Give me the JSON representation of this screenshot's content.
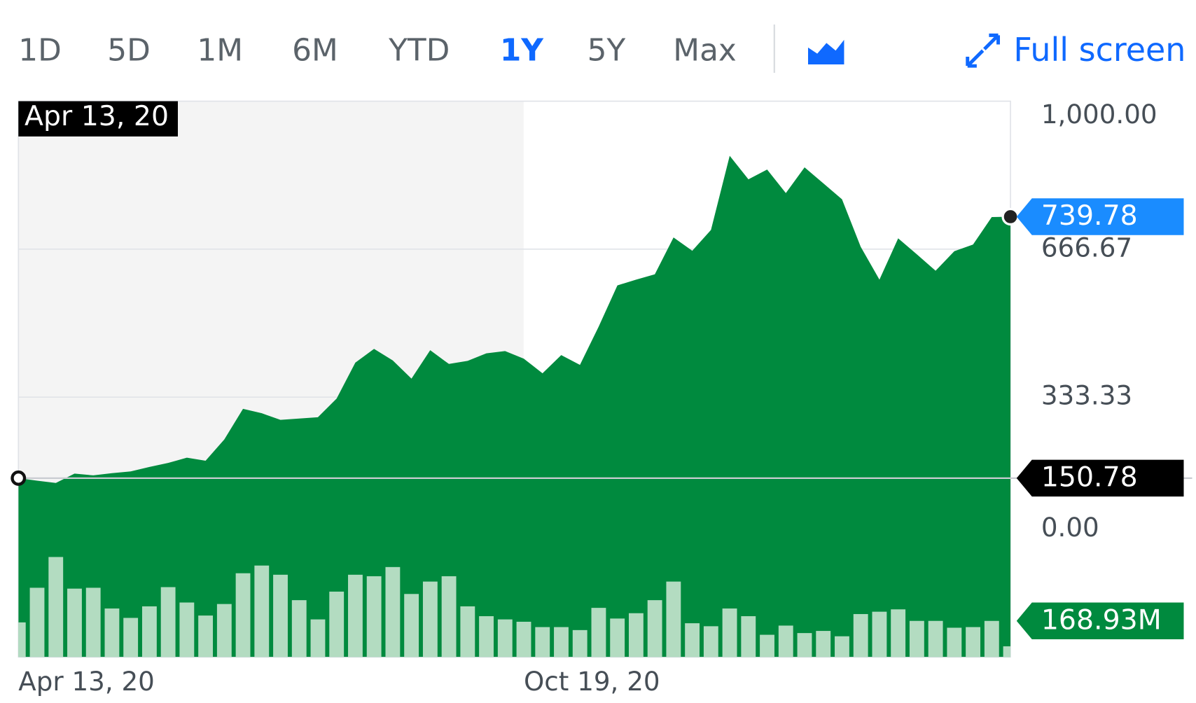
{
  "range_buttons": [
    "1D",
    "5D",
    "1M",
    "6M",
    "YTD",
    "1Y",
    "5Y",
    "Max"
  ],
  "active_range": "1Y",
  "full_screen": "Full screen",
  "chart_data": {
    "type": "area",
    "series": [
      {
        "color": "#008a3e",
        "values": [
          150.78,
          145,
          140,
          161,
          157,
          162,
          166,
          176,
          185,
          197,
          190,
          238,
          307,
          297,
          282,
          285,
          288,
          330,
          411,
          442,
          416,
          375,
          439,
          408,
          415,
          432,
          437,
          420,
          387,
          428,
          406,
          492,
          585,
          598,
          610,
          693,
          663,
          710,
          877,
          824,
          846,
          793,
          851,
          815,
          779,
          672,
          598,
          691,
          655,
          618,
          662,
          677,
          739,
          739.78
        ]
      }
    ],
    "xlim": [
      0,
      53
    ],
    "xticks": [
      {
        "value": 0,
        "label": "Apr 13, 20"
      },
      {
        "value": 27,
        "label": "Oct 19, 20"
      }
    ],
    "ylim": [
      0,
      1000
    ],
    "yticks": [
      {
        "value": 1000,
        "label": "1,000.00"
      },
      666.67,
      333.33,
      {
        "value": 0,
        "label": "0.00"
      }
    ],
    "grid": true,
    "previous_close": 150.78,
    "volume": {
      "color": "#b3dcc1",
      "ylim": [
        0,
        470
      ],
      "values": [
        162,
        324,
        468,
        320,
        324,
        227,
        183,
        237,
        327,
        255,
        194,
        248,
        392,
        428,
        385,
        266,
        176,
        306,
        385,
        378,
        421,
        295,
        353,
        378,
        237,
        191,
        176,
        165,
        140,
        140,
        126,
        230,
        180,
        205,
        266,
        353,
        158,
        144,
        227,
        191,
        104,
        147,
        112,
        122,
        97,
        201,
        212,
        223,
        169,
        169,
        137,
        140,
        168.93,
        50
      ],
      "last_label": {
        "value": 168.93,
        "label": "168.93M"
      }
    }
  }
}
